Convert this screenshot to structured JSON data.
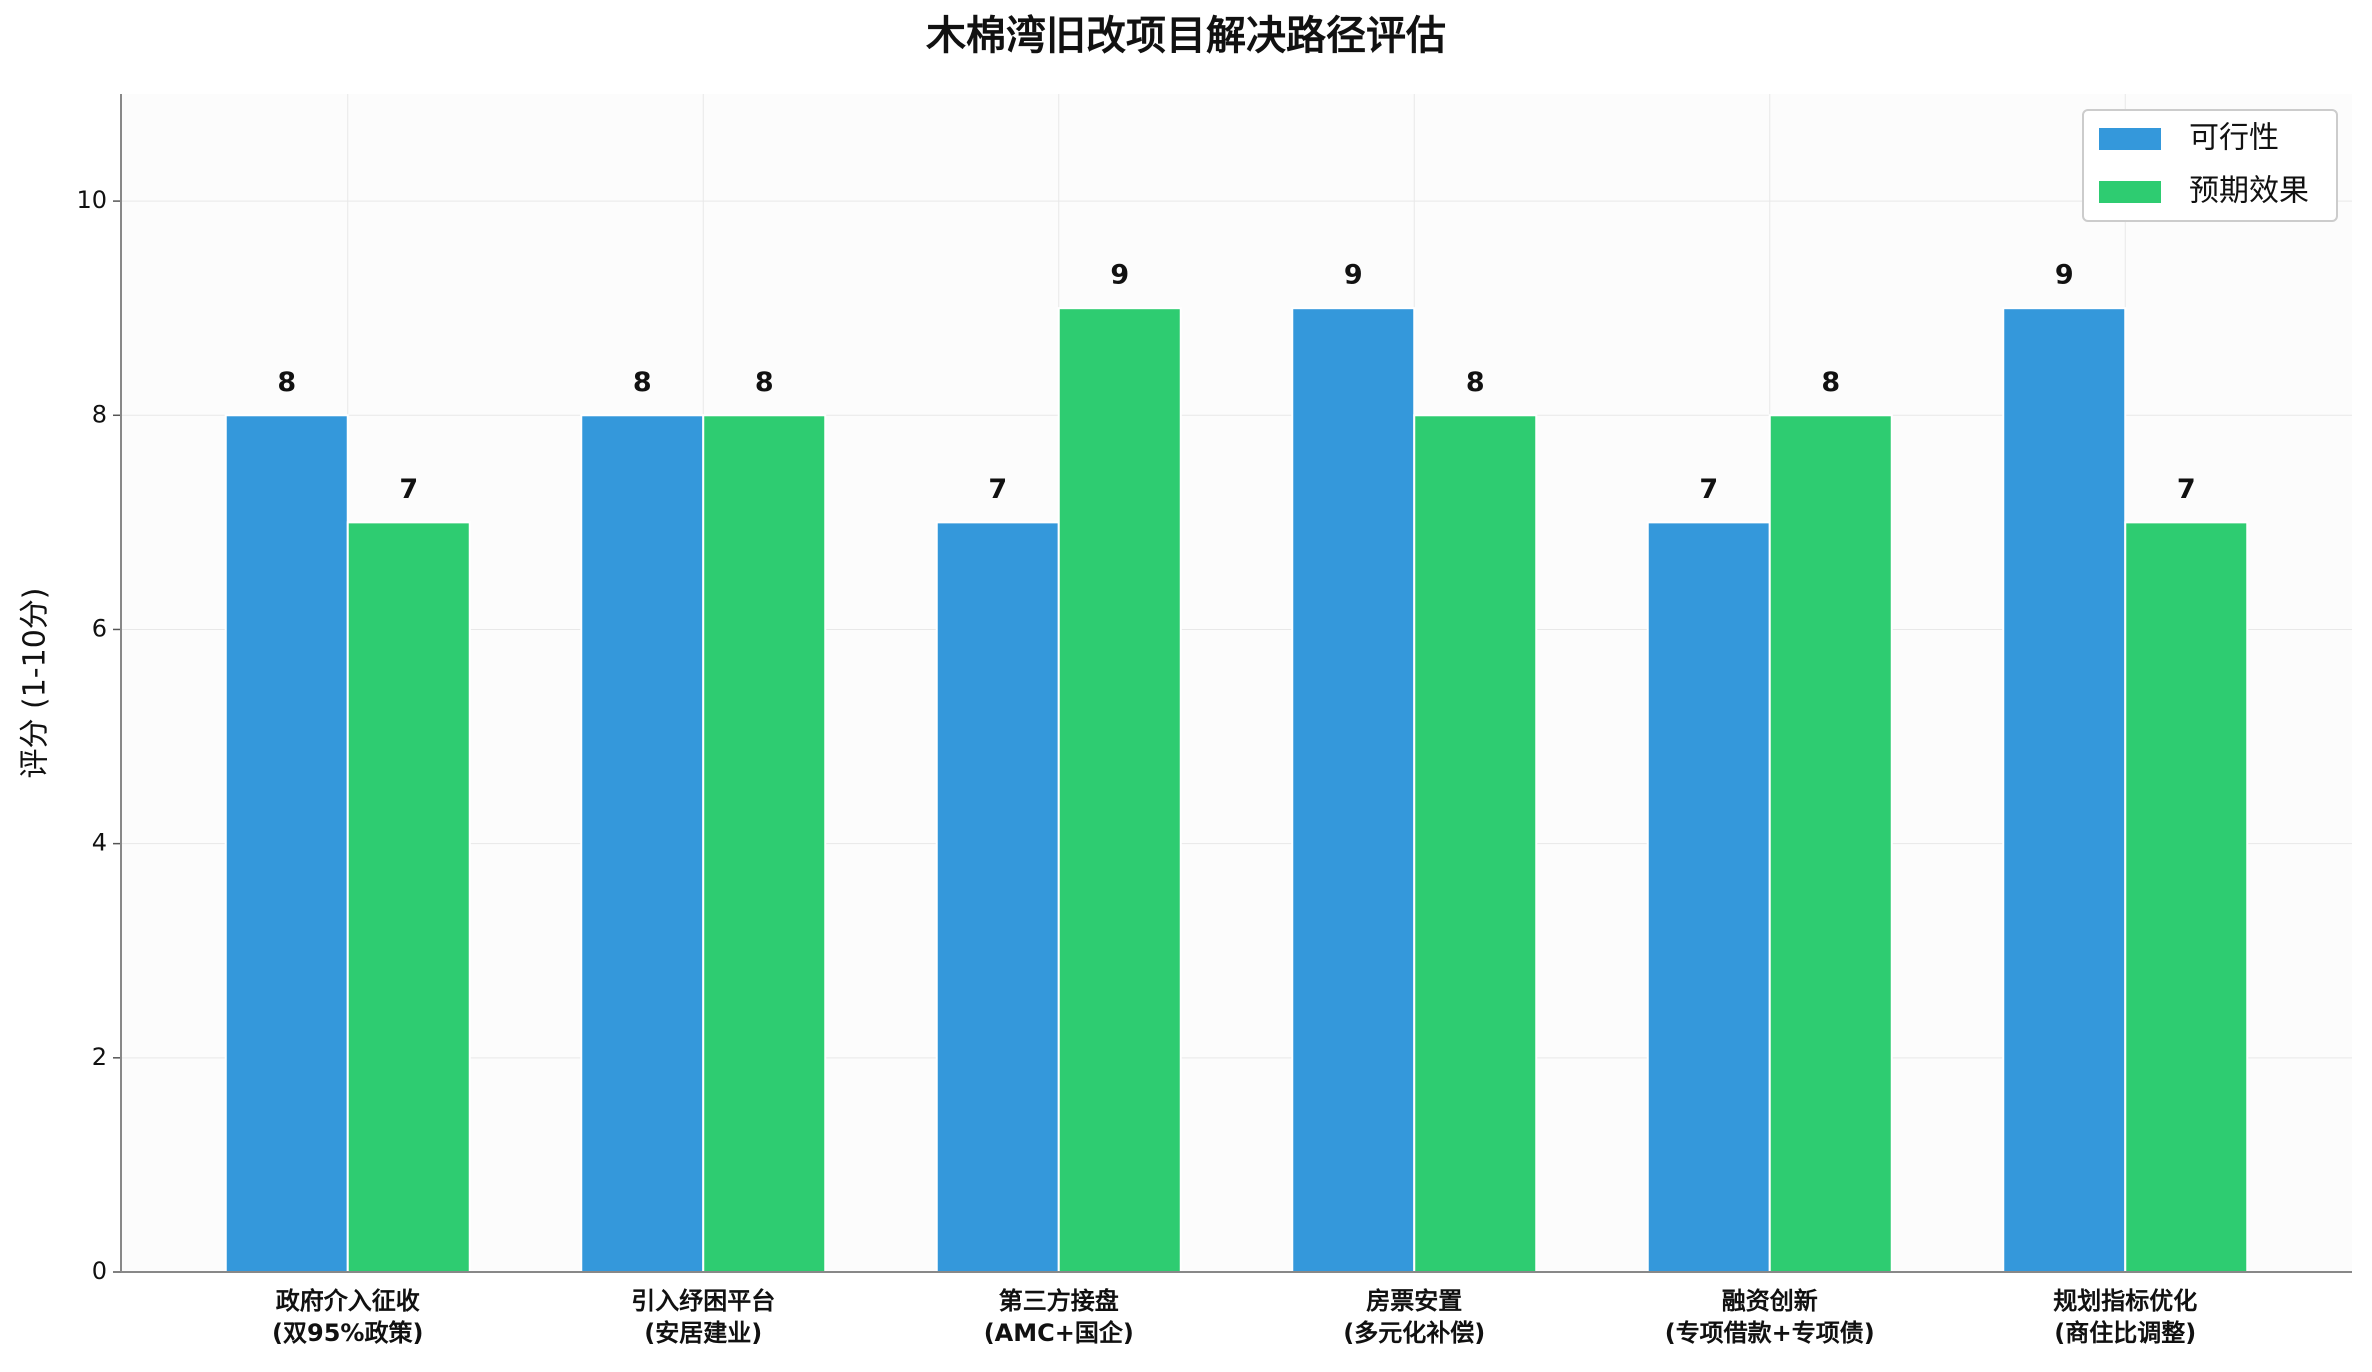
{
  "chart_data": {
    "type": "bar",
    "title": "木棉湾旧改项目解决路径评估",
    "y_label": "评分 (1-10分)",
    "categories": [
      "政府介入征收\n(双95%政策)",
      "引入纾困平台\n(安居建业)",
      "第三方接盘\n(AMC+国企)",
      "房票安置\n(多元化补偿)",
      "融资创新\n(专项借款+专项债)",
      "规划指标优化\n(商住比调整)"
    ],
    "series": [
      {
        "name": "可行性",
        "color": "#3498db",
        "values": [
          8,
          8,
          7,
          9,
          7,
          9
        ]
      },
      {
        "name": "预期效果",
        "color": "#2ecc71",
        "values": [
          7,
          8,
          9,
          8,
          8,
          7
        ]
      }
    ],
    "ylim": [
      0,
      11
    ],
    "yticks": [
      0,
      2,
      4,
      6,
      8,
      10
    ],
    "grid": true,
    "legend": "upper right"
  }
}
